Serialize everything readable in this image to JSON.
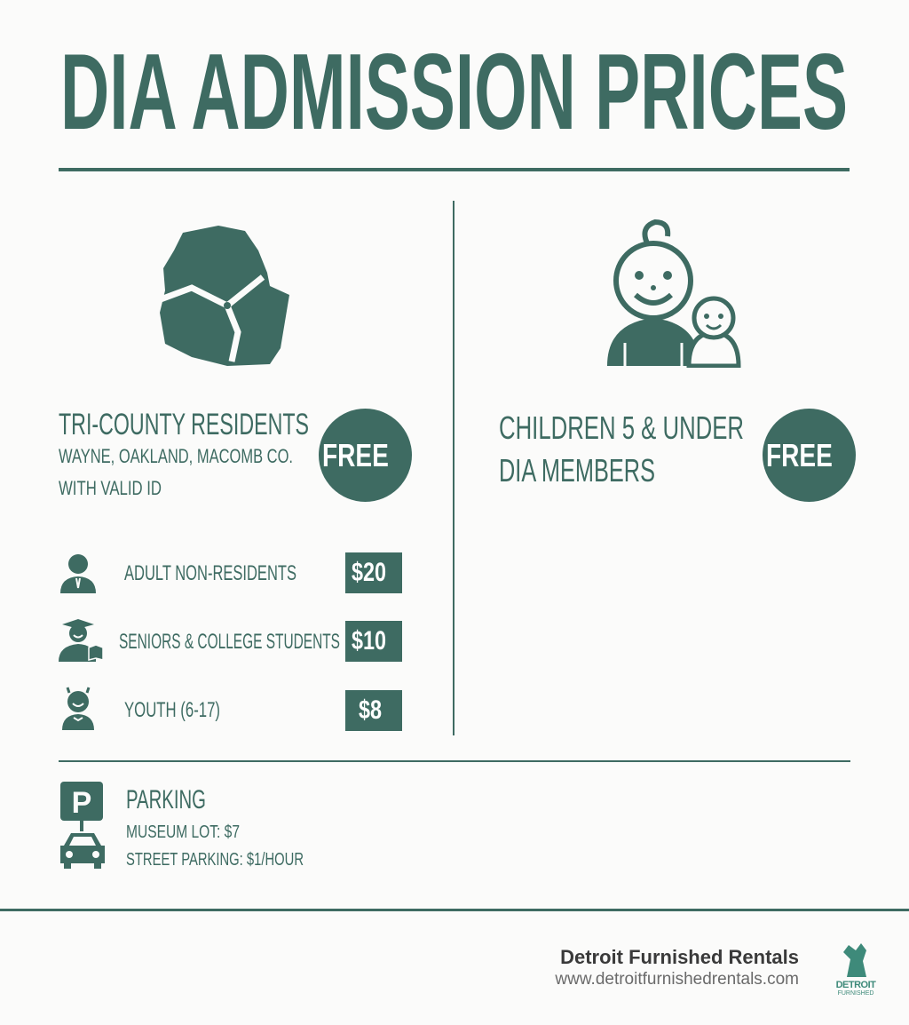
{
  "title": "DIA ADMISSION PRICES",
  "tri_county": {
    "heading": "TRI-COUNTY RESIDENTS",
    "line1": "WAYNE, OAKLAND, MACOMB CO.",
    "line2": "WITH VALID ID",
    "price": "FREE",
    "icon": "tri-county-map-icon"
  },
  "children": {
    "line1": "CHILDREN 5 & UNDER",
    "line2": "DIA MEMBERS",
    "price": "FREE",
    "icon": "parent-and-baby-icon"
  },
  "prices": [
    {
      "label": "ADULT NON-RESIDENTS",
      "price": "$20",
      "icon": "adult-icon"
    },
    {
      "label": "SENIORS & COLLEGE STUDENTS",
      "price": "$10",
      "icon": "graduate-icon"
    },
    {
      "label": "YOUTH (6-17)",
      "price": "$8",
      "icon": "youth-icon"
    }
  ],
  "parking": {
    "heading": "PARKING",
    "line1": "MUSEUM LOT: $7",
    "line2": "STREET PARKING: $1/HOUR",
    "icon": "parking-car-icon",
    "sign": "P"
  },
  "footer": {
    "company": "Detroit Furnished Rentals",
    "url": "www.detroitfurnishedrentals.com",
    "logo_text": "DETROIT FURNISHED RENTALS"
  },
  "colors": {
    "accent": "#3e6b62",
    "background": "#fbfbfa"
  }
}
